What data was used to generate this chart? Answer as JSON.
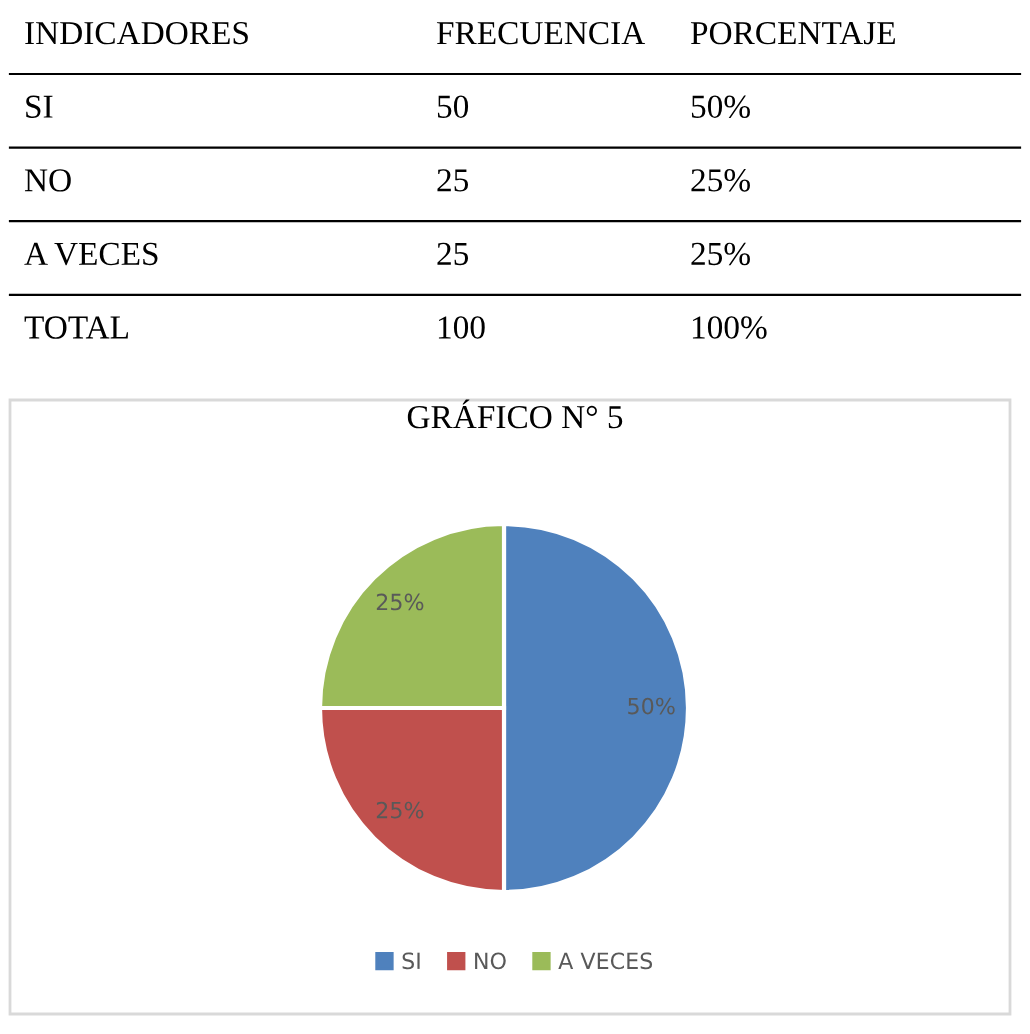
{
  "chart_data": {
    "type": "pie",
    "title": "GRÁFICO N° 5",
    "categories": [
      "SI",
      "NO",
      "A VECES"
    ],
    "values": [
      50,
      25,
      25
    ],
    "colors": [
      "#4f81bd",
      "#c0504d",
      "#9bbb59"
    ],
    "value_labels": [
      "50%",
      "25%",
      "25%"
    ],
    "legend": "bottom",
    "annotations": [
      "INDICADORES",
      "FRECUENCIA",
      "PORCENTAJE",
      "SI",
      "50",
      "50%",
      "NO",
      "25",
      "25%",
      "A VECES",
      "25",
      "25%",
      "TOTAL",
      "100",
      "100%"
    ]
  }
}
